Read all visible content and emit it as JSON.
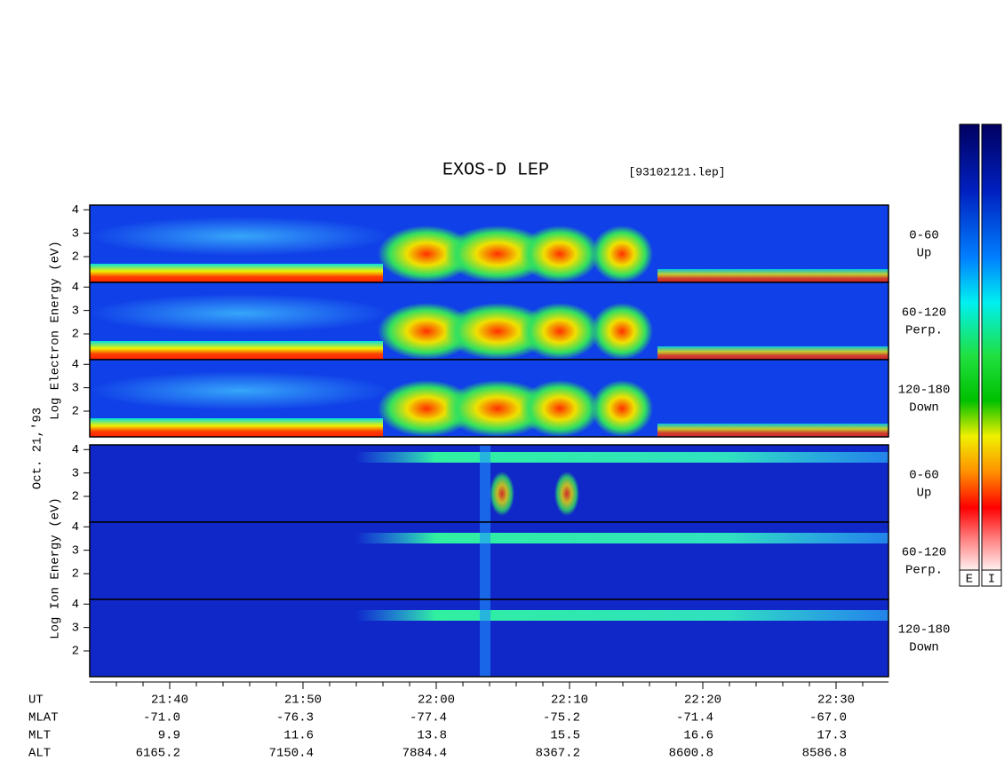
{
  "title": "EXOS-D LEP",
  "file": "[93102121.lep]",
  "date": "Oct. 21,'93",
  "electron": {
    "axis_label": "Log Electron Energy (eV)",
    "ylim": [
      0.9,
      4.2
    ],
    "yticks": [
      2,
      3,
      4
    ],
    "panels": [
      {
        "angle": "0-60",
        "direction": "Up"
      },
      {
        "angle": "60-120",
        "direction": "Perp."
      },
      {
        "angle": "120-180",
        "direction": "Down"
      }
    ]
  },
  "ion": {
    "axis_label": "Log Ion Energy (eV)",
    "ylim": [
      0.9,
      4.2
    ],
    "yticks": [
      2,
      3,
      4
    ],
    "panels": [
      {
        "angle": "0-60",
        "direction": "Up"
      },
      {
        "angle": "60-120",
        "direction": "Perp."
      },
      {
        "angle": "120-180",
        "direction": "Down"
      }
    ]
  },
  "orbit": {
    "rows": [
      {
        "label": "UT",
        "values": [
          "21:40",
          "21:50",
          "22:00",
          "22:10",
          "22:20",
          "22:30"
        ]
      },
      {
        "label": "MLAT",
        "values": [
          "-71.0",
          "-76.3",
          "-77.4",
          "-75.2",
          "-71.4",
          "-67.0"
        ]
      },
      {
        "label": "MLT",
        "values": [
          "9.9",
          "11.6",
          "13.8",
          "15.5",
          "16.6",
          "17.3"
        ]
      },
      {
        "label": "ALT",
        "values": [
          "6165.2",
          "7150.4",
          "7884.4",
          "8367.2",
          "8600.8",
          "8586.8"
        ]
      }
    ]
  },
  "colorbar": {
    "labels": [
      "E",
      "I"
    ]
  }
}
